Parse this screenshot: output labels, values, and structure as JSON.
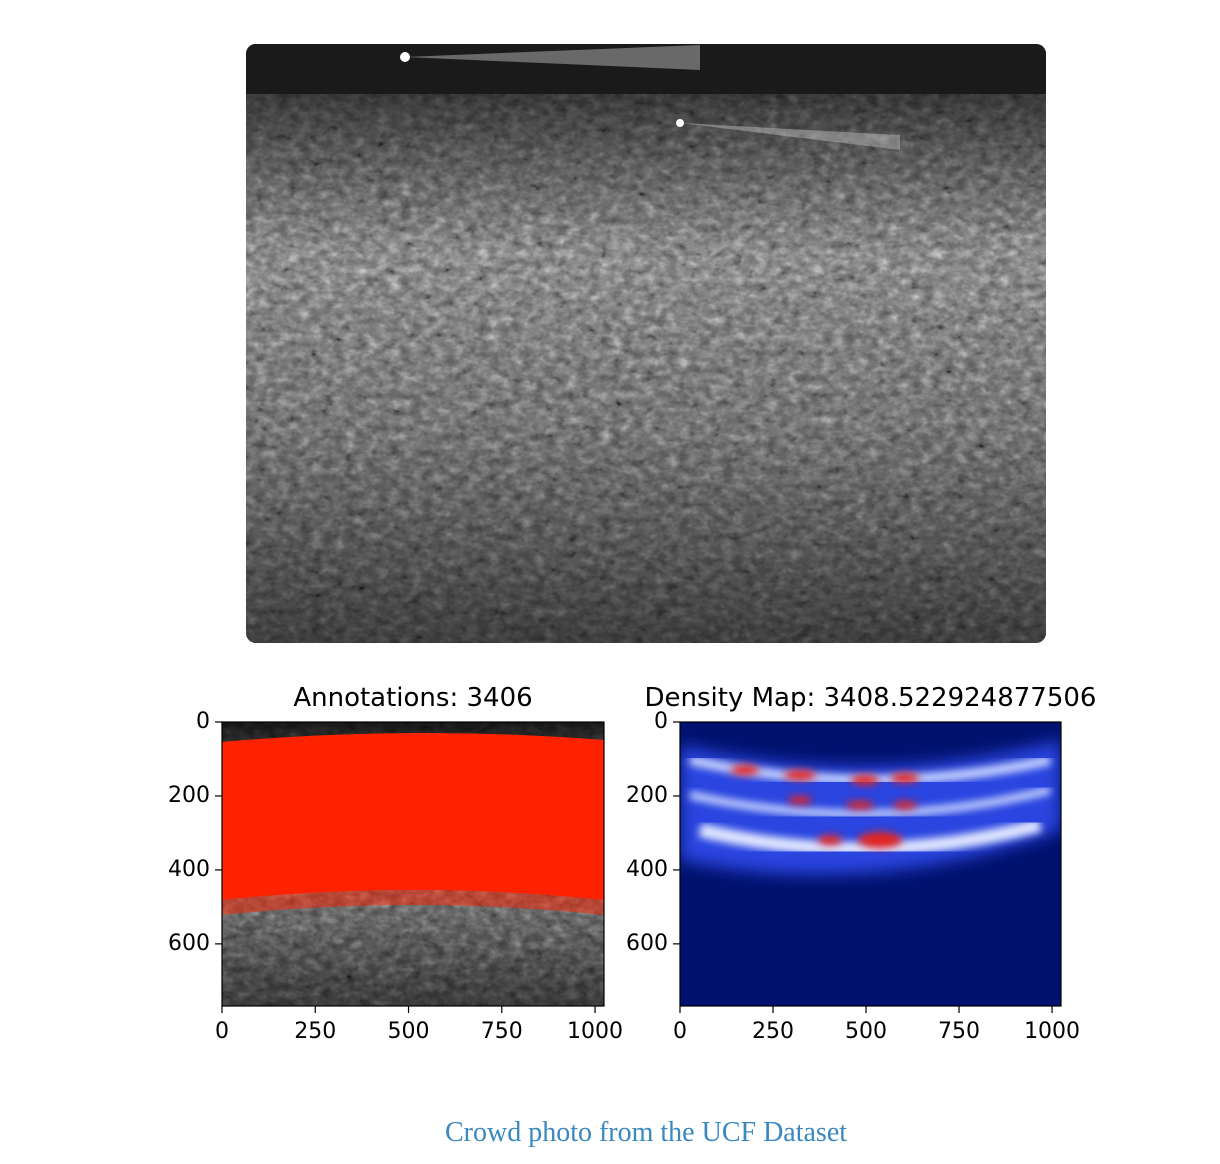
{
  "figure": {
    "panels": [
      {
        "title": "Annotations: 3406",
        "xlim": [
          0,
          1024
        ],
        "ylim": [
          768,
          0
        ],
        "xticks": [
          0,
          250,
          500,
          750,
          1000
        ],
        "yticks": [
          0,
          200,
          400,
          600
        ]
      },
      {
        "title": "Density Map: 3408.522924877506",
        "xlim": [
          0,
          1024
        ],
        "ylim": [
          768,
          0
        ],
        "xticks": [
          0,
          250,
          500,
          750,
          1000
        ],
        "yticks": [
          0,
          200,
          400,
          600
        ]
      }
    ]
  },
  "caption": "Crowd photo from the UCF Dataset"
}
